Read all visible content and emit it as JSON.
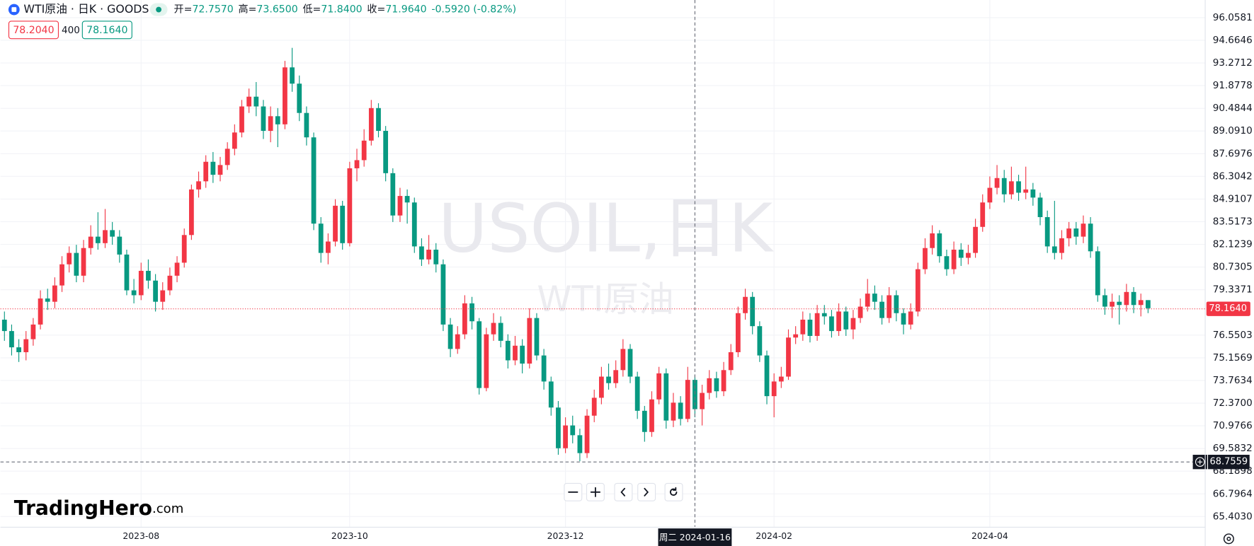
{
  "header": {
    "symbol": "WTI原油 · 日K · GOODS",
    "ohlc": [
      {
        "label": "开=",
        "value": "72.7570"
      },
      {
        "label": "高=",
        "value": "73.6500"
      },
      {
        "label": "低=",
        "value": "71.8400"
      },
      {
        "label": "收=",
        "value": "71.9640"
      }
    ],
    "change": "-0.5920 (-0.82%)",
    "bid": "78.2040",
    "spread": "400",
    "ask": "78.1640"
  },
  "watermark": {
    "title": "USOIL,日K",
    "subtitle": "WTI原油"
  },
  "logo": {
    "name": "TradingHero",
    "suffix": ".com"
  },
  "chart_data": {
    "type": "candlestick",
    "up_color": "#f23645",
    "down_color": "#089981",
    "grid": true,
    "ohlc": [
      [
        77.5,
        78.0,
        76.2,
        76.8
      ],
      [
        76.8,
        77.2,
        75.3,
        75.8
      ],
      [
        75.8,
        76.3,
        74.9,
        75.5
      ],
      [
        75.5,
        76.8,
        75.0,
        76.3
      ],
      [
        76.3,
        77.6,
        75.9,
        77.2
      ],
      [
        77.2,
        79.3,
        76.9,
        78.8
      ],
      [
        78.8,
        79.4,
        78.1,
        78.6
      ],
      [
        78.6,
        80.1,
        78.2,
        79.6
      ],
      [
        79.6,
        81.4,
        79.2,
        80.9
      ],
      [
        80.9,
        82.0,
        80.4,
        81.6
      ],
      [
        81.6,
        82.1,
        79.8,
        80.2
      ],
      [
        80.2,
        82.4,
        79.8,
        81.9
      ],
      [
        81.9,
        83.3,
        81.5,
        82.6
      ],
      [
        82.6,
        84.1,
        81.8,
        82.2
      ],
      [
        82.2,
        84.3,
        81.9,
        83.0
      ],
      [
        83.0,
        83.5,
        82.1,
        82.6
      ],
      [
        82.6,
        83.0,
        81.0,
        81.5
      ],
      [
        81.5,
        81.8,
        79.0,
        79.3
      ],
      [
        79.3,
        80.0,
        78.5,
        79.0
      ],
      [
        79.0,
        81.0,
        78.7,
        80.5
      ],
      [
        80.5,
        81.2,
        79.4,
        79.9
      ],
      [
        79.9,
        80.3,
        78.0,
        78.6
      ],
      [
        78.6,
        79.8,
        78.1,
        79.3
      ],
      [
        79.3,
        80.7,
        79.0,
        80.2
      ],
      [
        80.2,
        81.4,
        79.8,
        81.0
      ],
      [
        81.0,
        83.1,
        80.7,
        82.7
      ],
      [
        82.7,
        85.8,
        82.4,
        85.5
      ],
      [
        85.5,
        86.6,
        85.0,
        86.0
      ],
      [
        86.0,
        87.6,
        85.6,
        87.2
      ],
      [
        87.2,
        87.8,
        85.9,
        86.4
      ],
      [
        86.4,
        87.5,
        86.0,
        87.0
      ],
      [
        87.0,
        88.4,
        86.7,
        88.0
      ],
      [
        88.0,
        89.5,
        87.6,
        89.0
      ],
      [
        89.0,
        91.0,
        88.7,
        90.6
      ],
      [
        90.6,
        91.7,
        90.2,
        91.2
      ],
      [
        91.2,
        92.1,
        90.0,
        90.6
      ],
      [
        90.6,
        91.0,
        88.6,
        89.1
      ],
      [
        89.1,
        90.6,
        88.4,
        90.0
      ],
      [
        90.0,
        90.5,
        88.1,
        89.5
      ],
      [
        89.5,
        93.4,
        89.2,
        93.0
      ],
      [
        93.0,
        94.2,
        91.5,
        92.0
      ],
      [
        92.0,
        92.5,
        89.7,
        90.2
      ],
      [
        90.2,
        90.6,
        88.2,
        88.7
      ],
      [
        88.7,
        89.0,
        83.0,
        83.4
      ],
      [
        83.4,
        83.8,
        81.0,
        81.6
      ],
      [
        81.6,
        82.8,
        80.9,
        82.3
      ],
      [
        82.3,
        84.9,
        82.0,
        84.5
      ],
      [
        84.5,
        84.8,
        81.8,
        82.2
      ],
      [
        82.2,
        87.2,
        82.0,
        86.8
      ],
      [
        86.8,
        88.0,
        86.0,
        87.3
      ],
      [
        87.3,
        89.2,
        86.9,
        88.5
      ],
      [
        88.5,
        91.0,
        88.2,
        90.5
      ],
      [
        90.5,
        90.8,
        88.7,
        89.1
      ],
      [
        89.1,
        89.4,
        86.0,
        86.5
      ],
      [
        86.5,
        86.8,
        83.5,
        83.9
      ],
      [
        83.9,
        85.6,
        83.5,
        85.1
      ],
      [
        85.1,
        85.5,
        83.4,
        84.7
      ],
      [
        84.7,
        85.0,
        81.6,
        82.0
      ],
      [
        82.0,
        82.5,
        80.8,
        81.2
      ],
      [
        81.2,
        82.7,
        80.9,
        81.8
      ],
      [
        81.8,
        82.2,
        80.4,
        80.9
      ],
      [
        80.9,
        81.2,
        76.8,
        77.2
      ],
      [
        77.2,
        77.6,
        75.2,
        75.7
      ],
      [
        75.7,
        77.1,
        75.4,
        76.6
      ],
      [
        76.6,
        79.0,
        76.3,
        78.5
      ],
      [
        78.5,
        78.9,
        76.9,
        77.4
      ],
      [
        77.4,
        77.6,
        72.9,
        73.3
      ],
      [
        73.3,
        77.0,
        73.1,
        76.6
      ],
      [
        76.6,
        77.9,
        76.2,
        77.3
      ],
      [
        77.3,
        77.7,
        75.8,
        76.2
      ],
      [
        76.2,
        76.6,
        74.5,
        75.0
      ],
      [
        75.0,
        76.5,
        74.7,
        75.9
      ],
      [
        75.9,
        76.3,
        74.2,
        74.8
      ],
      [
        74.8,
        78.2,
        74.5,
        77.6
      ],
      [
        77.6,
        77.9,
        75.0,
        75.3
      ],
      [
        75.3,
        75.7,
        73.2,
        73.7
      ],
      [
        73.7,
        74.0,
        71.6,
        72.1
      ],
      [
        72.1,
        72.5,
        69.2,
        69.6
      ],
      [
        69.6,
        71.5,
        69.3,
        71.0
      ],
      [
        71.0,
        71.6,
        69.9,
        70.4
      ],
      [
        70.4,
        70.8,
        68.8,
        69.3
      ],
      [
        69.3,
        72.0,
        69.0,
        71.6
      ],
      [
        71.6,
        73.2,
        71.2,
        72.7
      ],
      [
        72.7,
        74.6,
        72.3,
        74.0
      ],
      [
        74.0,
        74.8,
        73.2,
        73.6
      ],
      [
        73.6,
        75.0,
        73.3,
        74.4
      ],
      [
        74.4,
        76.3,
        74.0,
        75.7
      ],
      [
        75.7,
        76.0,
        73.6,
        74.0
      ],
      [
        74.0,
        74.3,
        71.4,
        71.9
      ],
      [
        71.9,
        72.2,
        70.0,
        70.6
      ],
      [
        70.6,
        73.1,
        70.3,
        72.6
      ],
      [
        72.6,
        74.6,
        72.3,
        74.2
      ],
      [
        74.2,
        74.5,
        70.8,
        71.3
      ],
      [
        71.3,
        73.0,
        70.9,
        72.4
      ],
      [
        72.4,
        72.8,
        71.0,
        71.4
      ],
      [
        71.4,
        74.6,
        71.2,
        73.8
      ],
      [
        73.8,
        74.1,
        71.5,
        72.0
      ],
      [
        72.0,
        73.5,
        71.0,
        73.0
      ],
      [
        73.0,
        74.4,
        72.6,
        73.9
      ],
      [
        73.9,
        74.3,
        72.7,
        73.1
      ],
      [
        73.1,
        74.9,
        72.8,
        74.4
      ],
      [
        74.4,
        76.0,
        74.1,
        75.5
      ],
      [
        75.5,
        78.3,
        75.2,
        77.9
      ],
      [
        77.9,
        79.4,
        77.5,
        78.9
      ],
      [
        78.9,
        79.2,
        76.6,
        77.1
      ],
      [
        77.1,
        77.4,
        74.9,
        75.3
      ],
      [
        75.3,
        75.6,
        72.3,
        72.8
      ],
      [
        72.8,
        74.2,
        71.5,
        73.7
      ],
      [
        73.7,
        74.6,
        73.3,
        74.0
      ],
      [
        74.0,
        76.9,
        73.8,
        76.4
      ],
      [
        76.4,
        77.1,
        76.0,
        76.6
      ],
      [
        76.6,
        78.0,
        76.2,
        77.5
      ],
      [
        77.5,
        77.9,
        76.1,
        76.5
      ],
      [
        76.5,
        78.4,
        76.2,
        77.9
      ],
      [
        77.9,
        78.4,
        77.2,
        77.7
      ],
      [
        77.7,
        78.1,
        76.4,
        76.8
      ],
      [
        76.8,
        78.5,
        76.5,
        78.0
      ],
      [
        78.0,
        78.3,
        76.5,
        76.9
      ],
      [
        76.9,
        78.1,
        76.3,
        77.6
      ],
      [
        77.6,
        78.8,
        77.3,
        78.3
      ],
      [
        78.3,
        80.0,
        78.0,
        79.1
      ],
      [
        79.1,
        79.6,
        78.1,
        78.6
      ],
      [
        78.6,
        79.0,
        77.2,
        77.6
      ],
      [
        77.6,
        79.5,
        77.3,
        79.0
      ],
      [
        79.0,
        79.3,
        77.4,
        77.9
      ],
      [
        77.9,
        78.2,
        76.6,
        77.2
      ],
      [
        77.2,
        78.5,
        76.9,
        78.0
      ],
      [
        78.0,
        81.0,
        77.7,
        80.6
      ],
      [
        80.6,
        82.5,
        80.3,
        81.9
      ],
      [
        81.9,
        83.3,
        81.5,
        82.8
      ],
      [
        82.8,
        83.0,
        81.0,
        81.4
      ],
      [
        81.4,
        81.8,
        80.2,
        80.6
      ],
      [
        80.6,
        82.3,
        80.3,
        81.8
      ],
      [
        81.8,
        82.2,
        80.8,
        81.3
      ],
      [
        81.3,
        82.1,
        80.9,
        81.6
      ],
      [
        81.6,
        83.7,
        81.3,
        83.2
      ],
      [
        83.2,
        85.2,
        82.9,
        84.7
      ],
      [
        84.7,
        86.3,
        84.3,
        85.6
      ],
      [
        85.6,
        87.0,
        85.2,
        86.2
      ],
      [
        86.2,
        86.7,
        84.7,
        85.2
      ],
      [
        85.2,
        86.9,
        84.9,
        86.0
      ],
      [
        86.0,
        86.4,
        84.8,
        85.3
      ],
      [
        85.3,
        86.9,
        84.9,
        85.5
      ],
      [
        85.5,
        85.9,
        84.5,
        85.0
      ],
      [
        85.0,
        85.3,
        83.3,
        83.8
      ],
      [
        83.8,
        84.2,
        81.6,
        82.0
      ],
      [
        82.0,
        84.8,
        81.2,
        81.6
      ],
      [
        81.6,
        83.0,
        81.2,
        82.5
      ],
      [
        82.5,
        83.5,
        82.0,
        83.1
      ],
      [
        83.1,
        83.5,
        82.1,
        82.6
      ],
      [
        82.6,
        83.9,
        82.2,
        83.4
      ],
      [
        83.4,
        83.8,
        81.3,
        81.7
      ],
      [
        81.7,
        82.0,
        78.6,
        79.0
      ],
      [
        79.0,
        79.4,
        77.8,
        78.3
      ],
      [
        78.3,
        79.1,
        77.6,
        78.6
      ],
      [
        78.6,
        79.0,
        77.2,
        78.4
      ],
      [
        78.4,
        79.7,
        78.0,
        79.2
      ],
      [
        79.2,
        79.5,
        77.9,
        78.4
      ],
      [
        78.4,
        79.1,
        77.7,
        78.7
      ],
      [
        78.7,
        78.7,
        77.9,
        78.2
      ]
    ],
    "ylim": [
      64.77,
      97.14
    ],
    "yticks": [
      96.0581,
      94.6646,
      93.2712,
      91.8778,
      90.4844,
      {
        "value": 89.091,
        "label": "89.0910"
      },
      87.6976,
      86.3042,
      84.9107,
      83.5173,
      82.1239,
      80.7305,
      79.3371,
      76.5503,
      75.1569,
      73.7634,
      {
        "value": 72.37,
        "label": "72.3700"
      },
      70.9766,
      69.5832,
      68.1898,
      66.7964,
      {
        "value": 65.403,
        "label": "65.4030"
      }
    ],
    "xticks": [
      {
        "value": 19,
        "label": "2023-08"
      },
      {
        "value": 48,
        "label": "2023-10"
      },
      {
        "value": 78,
        "label": "2023-12"
      },
      {
        "value": 107,
        "label": "2024-02"
      },
      {
        "value": 137,
        "label": "2024-04"
      }
    ],
    "last_price": {
      "value": 78.164,
      "label": "78.1640"
    },
    "crosshair": {
      "x": 96,
      "x_label": "周二 2024-01-16",
      "y": 68.7559
    }
  }
}
